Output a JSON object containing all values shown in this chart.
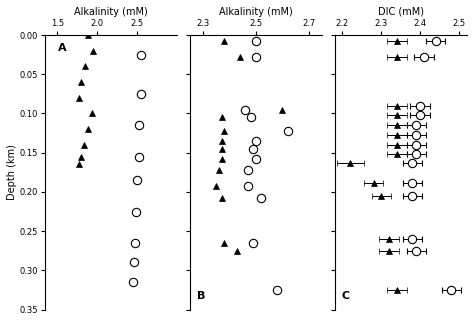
{
  "panel_A": {
    "title": "Alkalinity (mM)",
    "xlim": [
      1.35,
      3.0
    ],
    "xticks": [
      1.5,
      2.0,
      2.5
    ],
    "ylim": [
      0.35,
      0.0
    ],
    "yticks": [
      0.0,
      0.05,
      0.1,
      0.15,
      0.2,
      0.25,
      0.3,
      0.35
    ],
    "ylabel": "Depth (km)",
    "label": "A",
    "tri_x": [
      1.88,
      1.95,
      1.85,
      1.8,
      1.77,
      1.93,
      1.88,
      1.83,
      1.8,
      1.77
    ],
    "tri_y": [
      0.0,
      0.02,
      0.04,
      0.06,
      0.08,
      0.1,
      0.12,
      0.14,
      0.155,
      0.165
    ],
    "circ_x": [
      2.55,
      2.55,
      2.52,
      2.52,
      2.5,
      2.48,
      2.47,
      2.46,
      2.44
    ],
    "circ_y": [
      0.025,
      0.075,
      0.115,
      0.155,
      0.185,
      0.225,
      0.265,
      0.29,
      0.315
    ]
  },
  "panel_B": {
    "title": "Alkalinity (mM)",
    "xlim": [
      2.25,
      2.75
    ],
    "xticks": [
      2.3,
      2.5,
      2.7
    ],
    "ylim": [
      3.5,
      0.0
    ],
    "yticks": [
      0.0,
      0.5,
      1.0,
      1.5,
      2.0,
      2.5,
      3.0,
      3.5
    ],
    "label": "B",
    "tri_x": [
      2.38,
      2.44,
      2.6,
      2.37,
      2.38,
      2.37,
      2.37,
      2.37,
      2.36,
      2.35,
      2.37,
      2.38,
      2.43
    ],
    "tri_y": [
      0.08,
      0.28,
      0.95,
      1.05,
      1.22,
      1.35,
      1.45,
      1.58,
      1.72,
      1.92,
      2.08,
      2.65,
      2.75
    ],
    "circ_x": [
      2.5,
      2.5,
      2.46,
      2.48,
      2.62,
      2.5,
      2.49,
      2.5,
      2.47,
      2.47,
      2.52,
      2.49,
      2.58
    ],
    "circ_y": [
      0.08,
      0.28,
      0.95,
      1.05,
      1.22,
      1.35,
      1.45,
      1.58,
      1.72,
      1.92,
      2.08,
      2.65,
      3.25
    ]
  },
  "panel_C": {
    "title": "DIC (mM)",
    "xlim": [
      2.18,
      2.52
    ],
    "xticks": [
      2.2,
      2.3,
      2.4,
      2.5
    ],
    "ylim": [
      3.5,
      0.0
    ],
    "yticks": [
      0.0,
      0.5,
      1.0,
      1.5,
      2.0,
      2.5,
      3.0,
      3.5
    ],
    "label": "C",
    "tri_x": [
      2.34,
      2.34,
      2.34,
      2.34,
      2.34,
      2.34,
      2.34,
      2.34,
      2.22,
      2.28,
      2.3,
      2.32,
      2.32,
      2.34
    ],
    "tri_y": [
      0.08,
      0.28,
      0.9,
      1.02,
      1.15,
      1.28,
      1.4,
      1.52,
      1.63,
      1.88,
      2.05,
      2.6,
      2.75,
      3.25
    ],
    "tri_xe": [
      0.025,
      0.025,
      0.025,
      0.025,
      0.025,
      0.025,
      0.025,
      0.025,
      0.035,
      0.025,
      0.025,
      0.025,
      0.025,
      0.025
    ],
    "circ_x": [
      2.44,
      2.41,
      2.4,
      2.4,
      2.39,
      2.39,
      2.39,
      2.39,
      2.38,
      2.38,
      2.38,
      2.38,
      2.39,
      2.48
    ],
    "circ_y": [
      0.08,
      0.28,
      0.9,
      1.02,
      1.15,
      1.28,
      1.4,
      1.52,
      1.63,
      1.88,
      2.05,
      2.6,
      2.75,
      3.25
    ],
    "circ_xe": [
      0.025,
      0.025,
      0.025,
      0.025,
      0.025,
      0.025,
      0.025,
      0.025,
      0.025,
      0.025,
      0.025,
      0.025,
      0.025,
      0.025
    ]
  },
  "marker_tri_size": 5,
  "marker_circ_size": 6
}
